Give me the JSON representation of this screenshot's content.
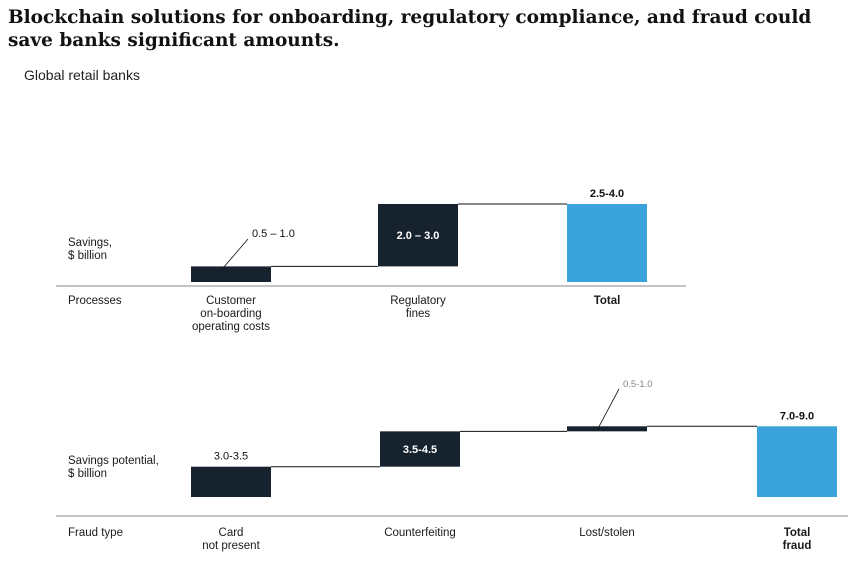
{
  "title": "Blockchain solutions for onboarding, regulatory compliance, and fraud could save banks significant amounts.",
  "subtitle": "Global retail banks",
  "colors": {
    "bar": "#17222f",
    "total": "#3ba3dc",
    "axis": "#888888",
    "text": "#1a1a1a"
  },
  "chart_data": [
    {
      "type": "bar",
      "subtype": "waterfall",
      "ylabel": [
        "Savings,",
        "$ billion"
      ],
      "category_axis_label": "Processes",
      "categories": [
        [
          "Customer",
          "on-boarding",
          "operating costs"
        ],
        [
          "Regulatory",
          "fines"
        ],
        [
          "Total"
        ]
      ],
      "value_labels": [
        "0.5 – 1.0",
        "2.0 – 3.0",
        "2.5-4.0"
      ],
      "ranges": [
        [
          0.5,
          1.0
        ],
        [
          2.0,
          3.0
        ],
        [
          2.5,
          4.0
        ]
      ],
      "values": [
        0.5,
        2.0,
        2.5
      ],
      "is_total": [
        false,
        false,
        true
      ]
    },
    {
      "type": "bar",
      "subtype": "waterfall",
      "ylabel": [
        "Savings potential,",
        "$ billion"
      ],
      "category_axis_label": "Fraud type",
      "categories": [
        [
          "Card",
          "not present"
        ],
        [
          "Counterfeiting"
        ],
        [
          "Lost/stolen"
        ],
        [
          "Total",
          "fraud"
        ]
      ],
      "value_labels": [
        "3.0-3.5",
        "3.5-4.5",
        "0.5-1.0",
        "7.0-9.0"
      ],
      "ranges": [
        [
          3.0,
          3.5
        ],
        [
          3.5,
          4.5
        ],
        [
          0.5,
          1.0
        ],
        [
          7.0,
          9.0
        ]
      ],
      "values": [
        3.0,
        3.5,
        0.5,
        7.0
      ],
      "is_total": [
        false,
        false,
        false,
        true
      ]
    }
  ]
}
